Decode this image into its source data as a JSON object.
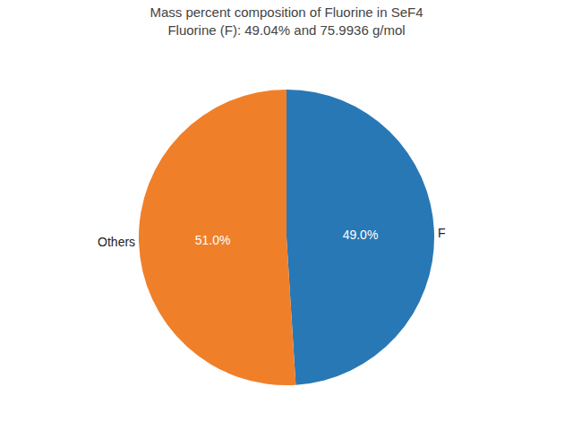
{
  "chart_data": {
    "type": "pie",
    "title": "Mass percent composition of Fluorine in SeF4",
    "subtitle": "Fluorine (F): 49.04% and 75.9936 g/mol",
    "categories": [
      "F",
      "Others"
    ],
    "values": [
      49.0,
      51.0
    ],
    "value_labels": [
      "49.0%",
      "51.0%"
    ],
    "colors": [
      "#2878b5",
      "#f07f29"
    ],
    "data_labels": true
  }
}
